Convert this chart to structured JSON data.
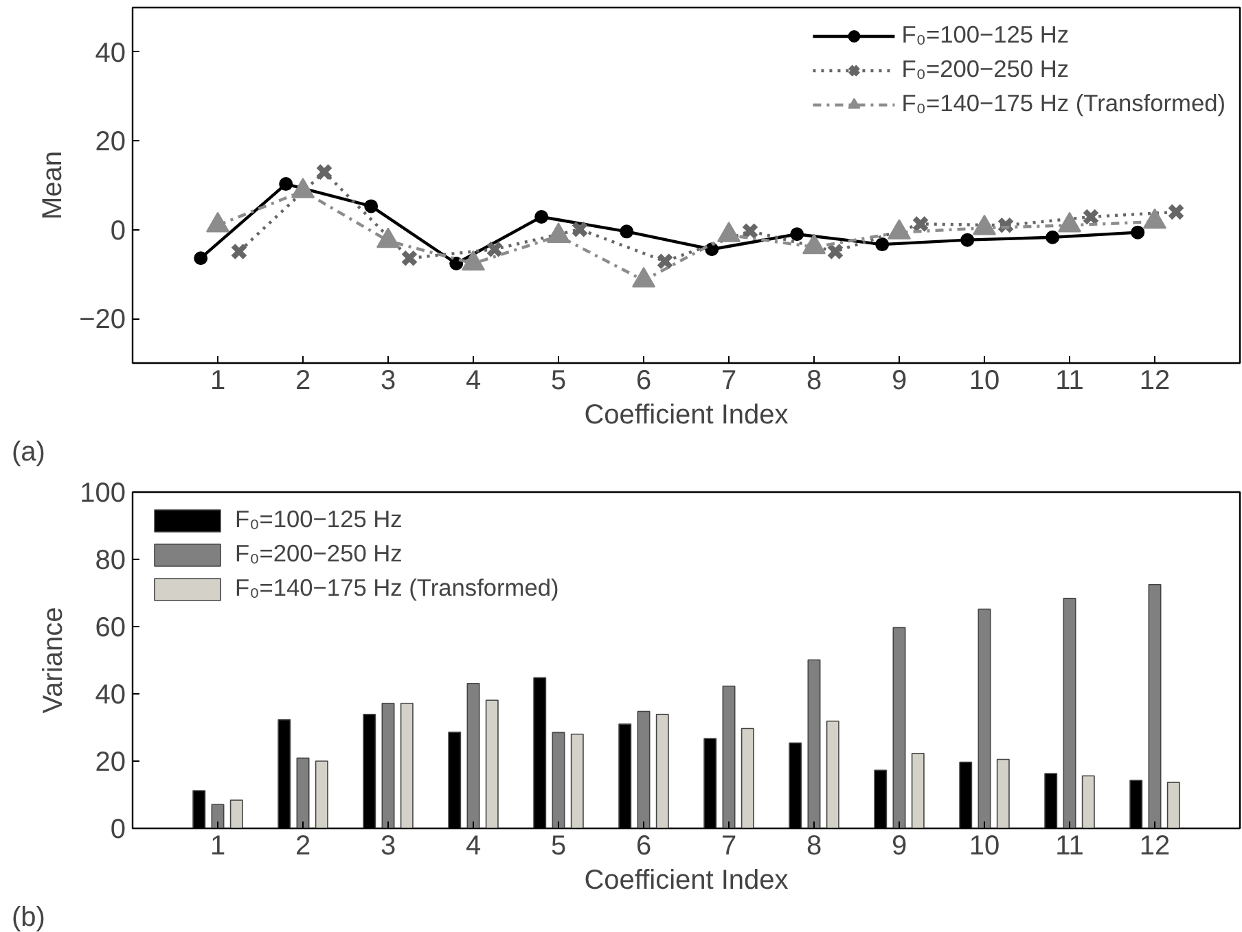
{
  "chart_data": [
    {
      "type": "line",
      "ylabel": "Mean",
      "xlabel": "Coefficient Index",
      "annotations": [
        "(a)"
      ],
      "xlim": [
        0,
        13
      ],
      "xticks": [
        1,
        2,
        3,
        4,
        5,
        6,
        7,
        8,
        9,
        10,
        11,
        12
      ],
      "ylim": [
        -30,
        50
      ],
      "yticks": [
        -20,
        0,
        20,
        40
      ],
      "grid": false,
      "legend": "top right",
      "series": [
        {
          "name": "F₀=100−125 Hz",
          "color": "#000000",
          "marker": "circle",
          "line_style": "solid",
          "x": [
            0.8,
            1.8,
            2.8,
            3.8,
            4.8,
            5.8,
            6.8,
            7.8,
            8.8,
            9.8,
            10.8,
            11.8
          ],
          "values": [
            -6.4,
            10.3,
            5.3,
            -7.6,
            2.9,
            -0.4,
            -4.4,
            -1.0,
            -3.3,
            -2.3,
            -1.7,
            -0.6
          ]
        },
        {
          "name": "F₀=200−250 Hz",
          "color": "#666666",
          "marker": "cross",
          "line_style": "dotted",
          "x": [
            1.25,
            2.25,
            3.25,
            4.25,
            5.25,
            6.25,
            7.25,
            8.25,
            9.25,
            10.25,
            11.25,
            12.25
          ],
          "values": [
            -4.9,
            13.0,
            -6.4,
            -4.4,
            0.1,
            -7.1,
            -0.3,
            -4.9,
            1.3,
            1.0,
            2.9,
            4.0
          ]
        },
        {
          "name": "F₀=140−175 Hz (Transformed)",
          "color": "#8c8c8c",
          "marker": "triangle",
          "line_style": "dashed",
          "x": [
            1,
            2,
            3,
            4,
            5,
            6,
            7,
            8,
            9,
            10,
            11,
            12
          ],
          "values": [
            1.0,
            8.7,
            -2.5,
            -7.6,
            -1.4,
            -11.4,
            -1.2,
            -3.9,
            -0.6,
            0.4,
            1.0,
            1.8
          ]
        }
      ]
    },
    {
      "type": "bar",
      "ylabel": "Variance",
      "xlabel": "Coefficient Index",
      "annotations": [
        "(b)"
      ],
      "x": [
        1,
        2,
        3,
        4,
        5,
        6,
        7,
        8,
        9,
        10,
        11,
        12
      ],
      "xlim": [
        0,
        13
      ],
      "xticks": [
        1,
        2,
        3,
        4,
        5,
        6,
        7,
        8,
        9,
        10,
        11,
        12
      ],
      "ylim": [
        0,
        100
      ],
      "yticks": [
        0,
        20,
        40,
        60,
        80,
        100
      ],
      "grid": false,
      "legend": "top left",
      "series": [
        {
          "name": "F₀=100−125 Hz",
          "color": "#000000",
          "values": [
            11.2,
            32.3,
            33.9,
            28.6,
            44.8,
            31.0,
            26.7,
            25.4,
            17.3,
            19.7,
            16.3,
            14.3
          ]
        },
        {
          "name": "F₀=200−250 Hz",
          "color": "#808080",
          "values": [
            7.1,
            20.9,
            37.2,
            43.1,
            28.5,
            34.8,
            42.3,
            50.1,
            59.7,
            65.2,
            68.4,
            72.5
          ]
        },
        {
          "name": "F₀=140−175 Hz (Transformed)",
          "color": "#d4d2c8",
          "values": [
            8.4,
            20.0,
            37.2,
            38.1,
            28.0,
            33.9,
            29.7,
            31.9,
            22.3,
            20.5,
            15.6,
            13.7
          ]
        }
      ]
    }
  ]
}
